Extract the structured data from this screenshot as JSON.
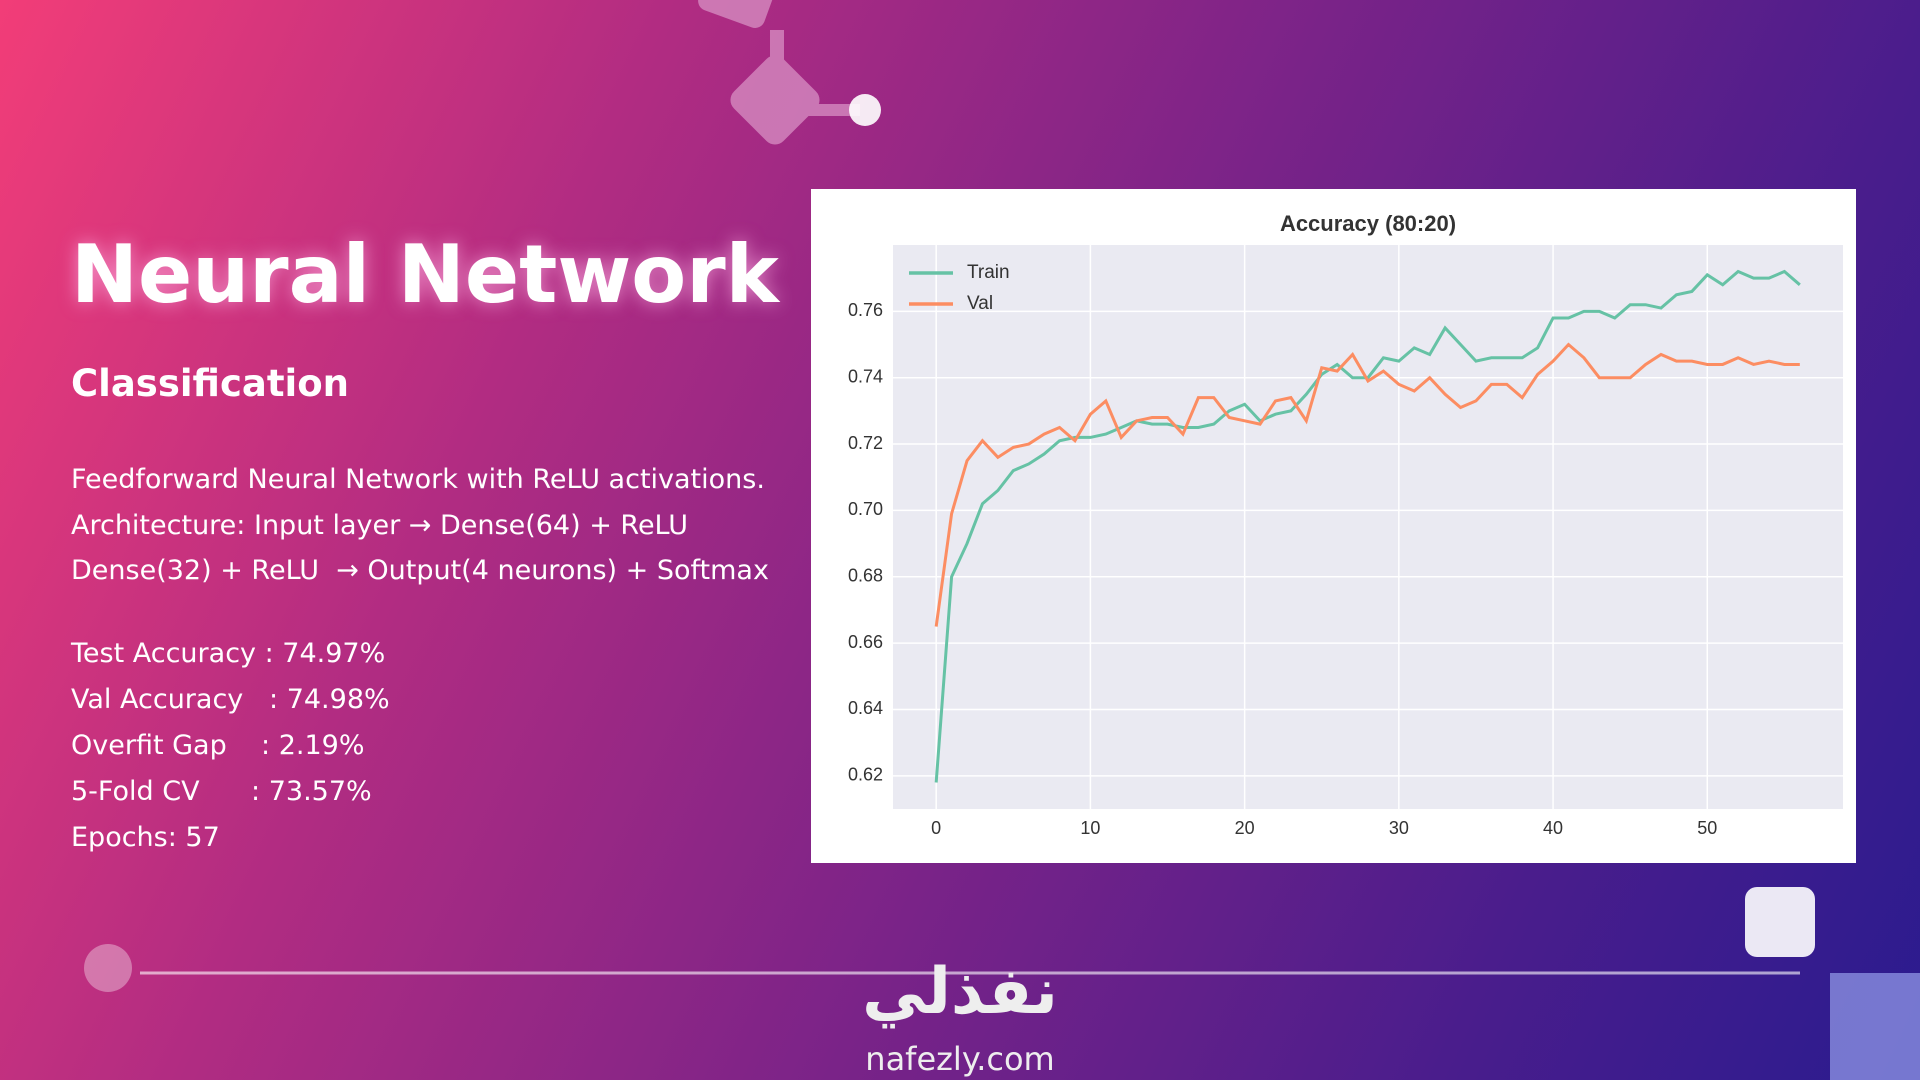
{
  "slide": {
    "title": "Neural Network",
    "subtitle": "Classification",
    "description": [
      "Feedforward Neural Network with ReLU activations.",
      "Architecture: Input layer → Dense(64) + ReLU",
      "Dense(32) + ReLU  → Output(4 neurons) + Softmax"
    ],
    "stats": [
      "Test Accuracy : 74.97%",
      "Val Accuracy   : 74.98%",
      "Overfit Gap    : 2.19%",
      "5-Fold CV      : 73.57%",
      "Epochs: 57"
    ],
    "logo": {
      "arabic": "نفذلي",
      "url": "nafezly.com"
    }
  },
  "chart_data": {
    "type": "line",
    "title": "Accuracy (80:20)",
    "x": [
      0,
      1,
      2,
      3,
      4,
      5,
      6,
      7,
      8,
      9,
      10,
      11,
      12,
      13,
      14,
      15,
      16,
      17,
      18,
      19,
      20,
      21,
      22,
      23,
      24,
      25,
      26,
      27,
      28,
      29,
      30,
      31,
      32,
      33,
      34,
      35,
      36,
      37,
      38,
      39,
      40,
      41,
      42,
      43,
      44,
      45,
      46,
      47,
      48,
      49,
      50,
      51,
      52,
      53,
      54,
      55,
      56
    ],
    "series": [
      {
        "name": "Train",
        "color": "#66c2a5",
        "values": [
          0.618,
          0.68,
          0.69,
          0.702,
          0.706,
          0.712,
          0.714,
          0.717,
          0.721,
          0.722,
          0.722,
          0.723,
          0.725,
          0.727,
          0.726,
          0.726,
          0.725,
          0.725,
          0.726,
          0.73,
          0.732,
          0.727,
          0.729,
          0.73,
          0.735,
          0.741,
          0.744,
          0.74,
          0.74,
          0.746,
          0.745,
          0.749,
          0.747,
          0.755,
          0.75,
          0.745,
          0.746,
          0.746,
          0.746,
          0.749,
          0.758,
          0.758,
          0.76,
          0.76,
          0.758,
          0.762,
          0.762,
          0.761,
          0.765,
          0.766,
          0.771,
          0.768,
          0.772,
          0.77,
          0.77,
          0.772,
          0.768
        ]
      },
      {
        "name": "Val",
        "color": "#fc8d62",
        "values": [
          0.665,
          0.699,
          0.715,
          0.721,
          0.716,
          0.719,
          0.72,
          0.723,
          0.725,
          0.721,
          0.729,
          0.733,
          0.722,
          0.727,
          0.728,
          0.728,
          0.723,
          0.734,
          0.734,
          0.728,
          0.727,
          0.726,
          0.733,
          0.734,
          0.727,
          0.743,
          0.742,
          0.747,
          0.739,
          0.742,
          0.738,
          0.736,
          0.74,
          0.735,
          0.731,
          0.733,
          0.738,
          0.738,
          0.734,
          0.741,
          0.745,
          0.75,
          0.746,
          0.74,
          0.74,
          0.74,
          0.744,
          0.747,
          0.745,
          0.745,
          0.744,
          0.744,
          0.746,
          0.744,
          0.745,
          0.744,
          0.744
        ]
      }
    ],
    "xlim": [
      -2.8,
      58.8
    ],
    "ylim": [
      0.61,
      0.78
    ],
    "xticks": [
      0,
      10,
      20,
      30,
      40,
      50
    ],
    "yticks": [
      0.62,
      0.64,
      0.66,
      0.68,
      {
        "value": 0.7,
        "label": "0.70"
      },
      0.72,
      0.74,
      0.76
    ],
    "grid": true,
    "legend": "upper left"
  }
}
